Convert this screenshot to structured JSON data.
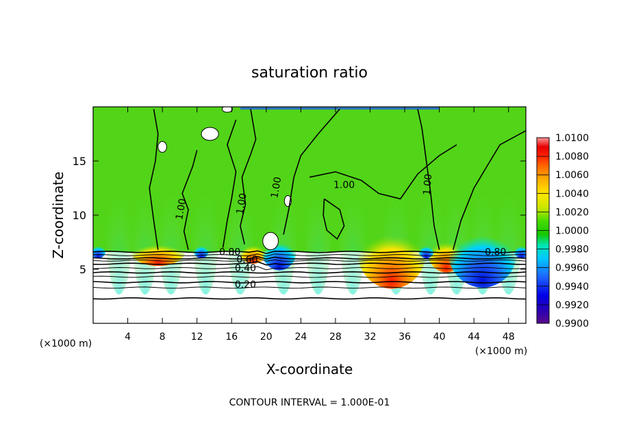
{
  "chart_data": {
    "type": "heatmap",
    "title": "saturation ratio",
    "xlabel": "X-coordinate",
    "ylabel": "Z-coordinate",
    "x_unit_left": "(×1000 m)",
    "x_unit_right": "(×1000 m)",
    "footer": "CONTOUR INTERVAL = 1.000E-01",
    "xlim": [
      0,
      50
    ],
    "ylim": [
      0,
      20
    ],
    "x_ticks": [
      4,
      8,
      12,
      16,
      20,
      24,
      28,
      32,
      36,
      40,
      44,
      48
    ],
    "y_ticks": [
      5,
      10,
      15
    ],
    "x_tick_labels": [
      "4",
      "8",
      "12",
      "16",
      "20",
      "24",
      "28",
      "32",
      "36",
      "40",
      "44",
      "48"
    ],
    "y_tick_labels": [
      "5",
      "10",
      "15"
    ],
    "colorbar": {
      "min": 0.99,
      "max": 1.01,
      "labels": [
        "1.0100",
        "1.0080",
        "1.0060",
        "1.0040",
        "1.0020",
        "1.0000",
        "0.9980",
        "0.9960",
        "0.9940",
        "0.9920",
        "0.9900"
      ],
      "colors": [
        "#5a0a8c",
        "#2a00b4",
        "#0000e6",
        "#1e64ff",
        "#00c8ff",
        "#00e6b4",
        "#18c800",
        "#46dc00",
        "#c8e600",
        "#ffe600",
        "#ffaa00",
        "#ff6400",
        "#ff2200",
        "#e60000",
        "#ff9696"
      ]
    },
    "contour_labels": [
      "1.00",
      "1.00",
      "1.00",
      "1.00",
      "1.00",
      "0.80",
      "0.80",
      "0.60",
      "0.40",
      "0.20"
    ],
    "contours": {
      "lower_levels_z": [
        6.6,
        6.3,
        6.0,
        5.8,
        5.5,
        5.1,
        4.7,
        4.3,
        3.8,
        3.3,
        2.3
      ]
    },
    "field_regions": {
      "supersaturated_max_x": [
        7.5,
        18.5,
        34.5,
        40.8
      ],
      "subsaturated_min_x": [
        21.5,
        45.0
      ]
    }
  }
}
